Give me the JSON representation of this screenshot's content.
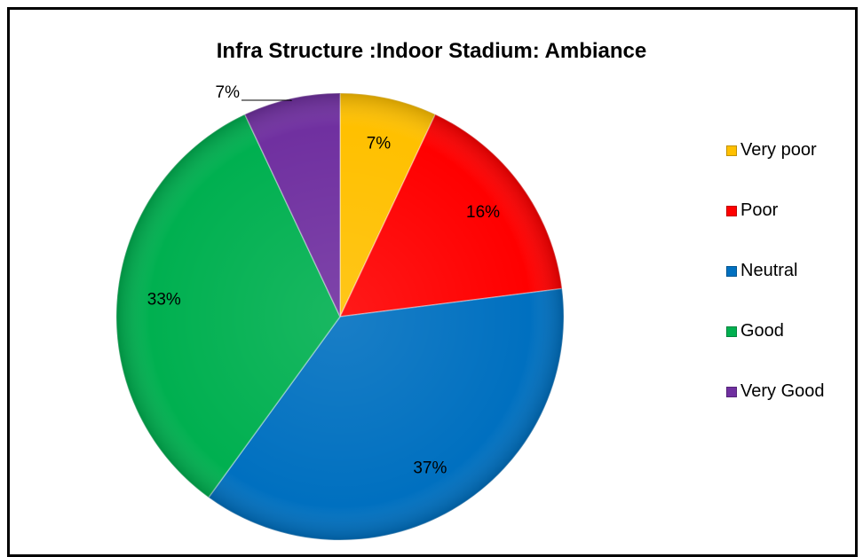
{
  "chart_data": {
    "type": "pie",
    "title": "Infra Structure :Indoor Stadium: Ambiance",
    "categories": [
      "Very poor",
      "Poor",
      "Neutral",
      "Good",
      "Very Good"
    ],
    "values": [
      7,
      16,
      37,
      33,
      7
    ],
    "data_labels": [
      "7%",
      "16%",
      "37%",
      "33%",
      "7%"
    ],
    "colors": [
      "#FFC000",
      "#FF0000",
      "#0070C0",
      "#00B050",
      "#7030A0"
    ],
    "legend_position": "right",
    "start_angle": "12 o'clock, clockwise"
  }
}
